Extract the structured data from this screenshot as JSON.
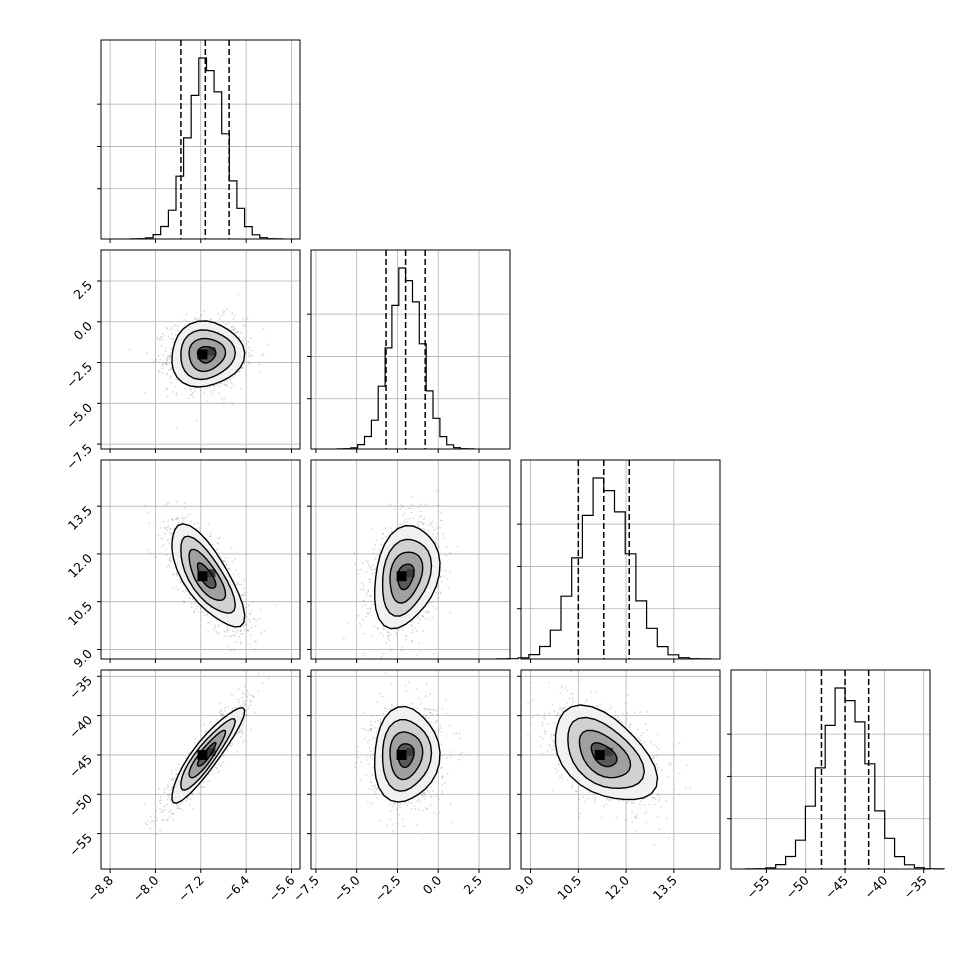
{
  "chart_data": {
    "type": "corner",
    "parameters": [
      {
        "mean": -7.1,
        "sigma": 0.32,
        "ticks": [
          -8.8,
          -8.0,
          -7.2,
          -6.4,
          -5.6
        ],
        "tick_labels": [
          "−8.8",
          "−8.0",
          "−7.2",
          "−6.4",
          "−5.6"
        ],
        "range": [
          -8.96,
          -5.45
        ],
        "quantiles": [
          -7.55,
          -7.12,
          -6.7
        ]
      },
      {
        "mean": -2.0,
        "sigma": 1.0,
        "ticks": [
          -7.5,
          -5.0,
          -2.5,
          0.0,
          2.5
        ],
        "tick_labels": [
          "−7.5",
          "−5.0",
          "−2.5",
          "0.0",
          "2.5"
        ],
        "range": [
          -7.8,
          4.4
        ],
        "quantiles": [
          -3.2,
          -2.0,
          -0.8
        ]
      },
      {
        "mean": 11.3,
        "sigma": 0.8,
        "ticks": [
          9.0,
          10.5,
          12.0,
          13.5
        ],
        "tick_labels": [
          "9.0",
          "10.5",
          "12.0",
          "13.5"
        ],
        "range": [
          8.7,
          14.95
        ],
        "quantiles": [
          10.5,
          11.3,
          12.1
        ]
      },
      {
        "mean": -45.0,
        "sigma": 3.0,
        "ticks": [
          -55,
          -50,
          -45,
          -40,
          -35
        ],
        "tick_labels": [
          "−55",
          "−50",
          "−45",
          "−40",
          "−35"
        ],
        "range": [
          -59.5,
          -34.2
        ],
        "quantiles": [
          -48.0,
          -45.0,
          -42.0
        ]
      }
    ],
    "correlations": [
      {
        "pair": [
          0,
          1
        ],
        "rho": 0.05
      },
      {
        "pair": [
          0,
          2
        ],
        "rho": -0.72
      },
      {
        "pair": [
          0,
          3
        ],
        "rho": 0.9
      },
      {
        "pair": [
          1,
          2
        ],
        "rho": 0.25
      },
      {
        "pair": [
          1,
          3
        ],
        "rho": 0.05
      },
      {
        "pair": [
          2,
          3
        ],
        "rho": -0.45
      }
    ],
    "histogram_bins": 20,
    "contour_levels_sigma": [
      0.5,
      1.0,
      1.5,
      2.0
    ],
    "grid": true,
    "title": "",
    "xlabel": "",
    "ylabel": ""
  }
}
